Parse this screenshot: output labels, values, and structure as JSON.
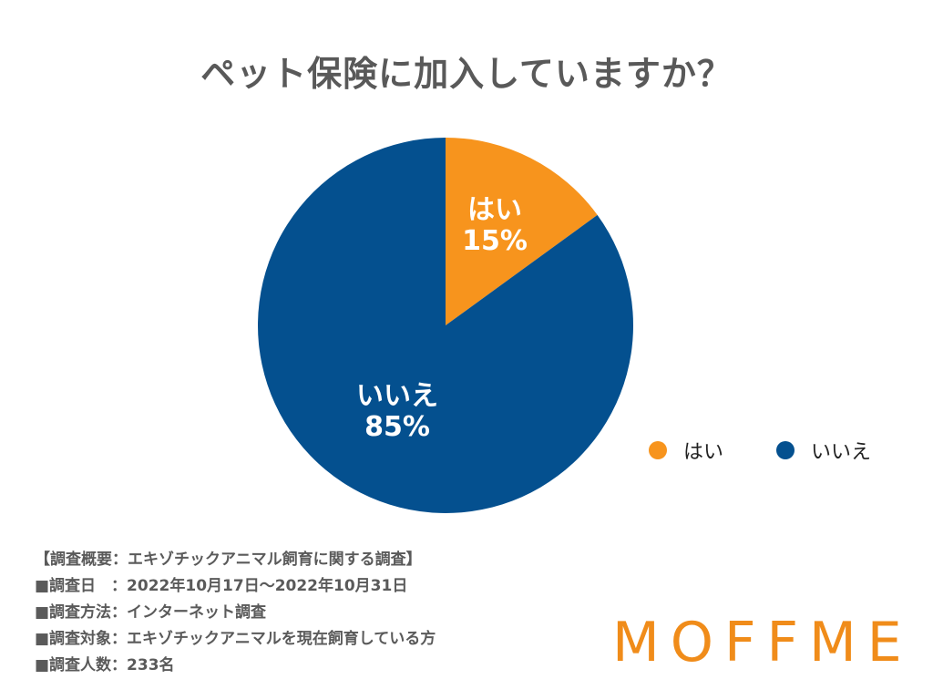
{
  "chart_data": {
    "type": "pie",
    "title": "ペット保険に加入していますか？",
    "slices": [
      {
        "label": "はい",
        "value": 15,
        "value_label": "15%",
        "color": "#f7941d"
      },
      {
        "label": "いいえ",
        "value": 85,
        "value_label": "85%",
        "color": "#04508f"
      }
    ],
    "start_angle_deg": 0,
    "direction": "clockwise",
    "legend": {
      "placement": "right",
      "entries": [
        "はい",
        "いいえ"
      ]
    }
  },
  "notes": [
    "【調査概要：エキゾチックアニマル飼育に関する調査】",
    "■調査日　：2022年10月17日〜2022年10月31日",
    "■調査方法：インターネット調査",
    "■調査対象：エキゾチックアニマルを現在飼育している方",
    "■調査人数：233名"
  ],
  "brand": {
    "logo_text": "MOFFME",
    "color": "#f08c1a"
  },
  "colors": {
    "title": "#595959",
    "notes": "#5a5a5a",
    "slice_label": "#ffffff"
  }
}
